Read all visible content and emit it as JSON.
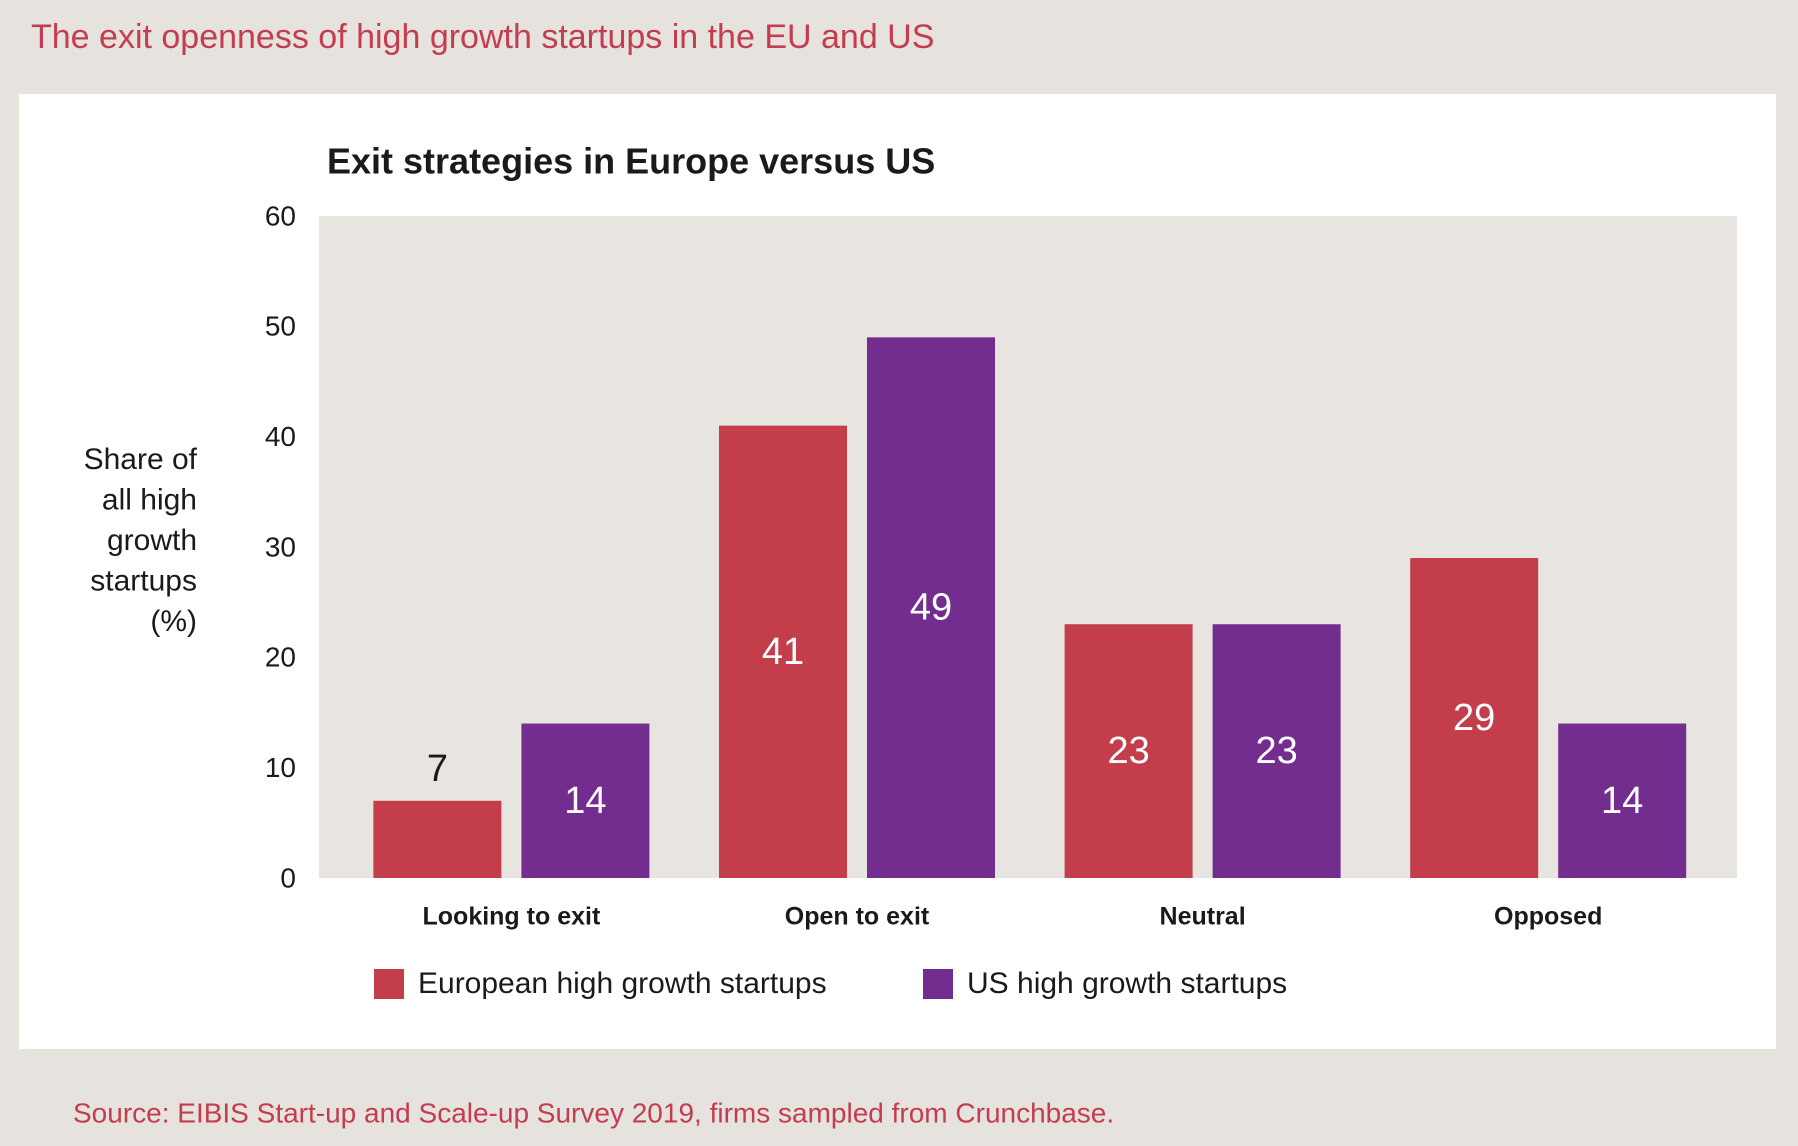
{
  "header": {
    "title": "The exit openness of high growth startups in the EU and US"
  },
  "chart_data": {
    "type": "bar",
    "title": "Exit strategies in Europe versus US",
    "y_label": "Share of all high growth startups (%)",
    "categories": [
      "Looking to exit",
      "Open to exit",
      "Neutral",
      "Opposed"
    ],
    "series": [
      {
        "name": "European high growth startups",
        "color": "#c43d4b",
        "values": [
          7,
          41,
          23,
          29
        ]
      },
      {
        "name": "US high growth startups",
        "color": "#722d8e",
        "values": [
          14,
          49,
          23,
          14
        ]
      }
    ],
    "ylim": [
      0,
      60
    ],
    "yticks": [
      0,
      10,
      20,
      30,
      40,
      50,
      60
    ],
    "grid": false,
    "legend": "bottom"
  },
  "footer": {
    "source": "Source: EIBIS Start-up and Scale-up Survey 2019, firms sampled from Crunchbase."
  }
}
